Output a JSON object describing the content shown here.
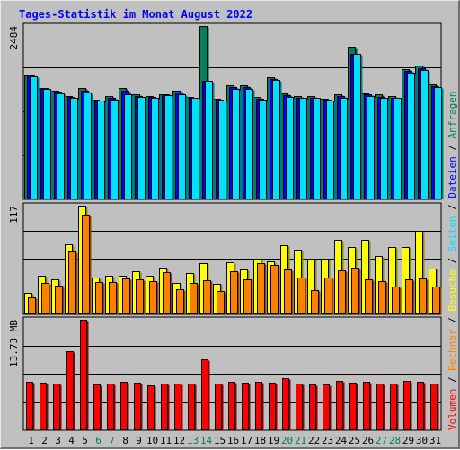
{
  "title": "Tages-Statistik im Monat August 2022",
  "colors": {
    "background": "#c0c0c0",
    "title": "#0000ff",
    "anfragen": "#00805c",
    "dateien": "#0000ff",
    "seiten": "#00e0ff",
    "besuche": "#ffff00",
    "rechner": "#ff8000",
    "volumen": "#ff0000",
    "weekend_label": "#00805c"
  },
  "right_labels": {
    "separator": " / ",
    "upper": [
      "Seiten",
      "Dateien",
      "Anfragen"
    ],
    "lower": [
      "Volumen",
      "Rechner",
      "Besuche"
    ]
  },
  "chart_data": [
    {
      "type": "bar",
      "panel": "hits",
      "y_label": "2484",
      "ylim": [
        0,
        2484
      ],
      "categories": [
        "1",
        "2",
        "3",
        "4",
        "5",
        "6",
        "7",
        "8",
        "9",
        "10",
        "11",
        "12",
        "13",
        "14",
        "15",
        "16",
        "17",
        "18",
        "19",
        "20",
        "21",
        "22",
        "23",
        "24",
        "25",
        "26",
        "27",
        "28",
        "29",
        "30",
        "31"
      ],
      "weekend_days": [
        "6",
        "7",
        "13",
        "14",
        "20",
        "21",
        "27",
        "28"
      ],
      "series": [
        {
          "name": "Anfragen",
          "values": [
            1770,
            1590,
            1560,
            1480,
            1590,
            1430,
            1480,
            1590,
            1500,
            1480,
            1510,
            1560,
            1470,
            2484,
            1440,
            1630,
            1630,
            1470,
            1750,
            1520,
            1480,
            1480,
            1440,
            1510,
            2190,
            1520,
            1500,
            1480,
            1860,
            1920,
            1650
          ]
        },
        {
          "name": "Dateien",
          "values": [
            1770,
            1590,
            1540,
            1470,
            1560,
            1420,
            1450,
            1560,
            1480,
            1470,
            1500,
            1530,
            1460,
            1700,
            1430,
            1610,
            1610,
            1440,
            1730,
            1490,
            1460,
            1460,
            1430,
            1480,
            2090,
            1500,
            1470,
            1460,
            1840,
            1880,
            1620
          ]
        },
        {
          "name": "Seiten",
          "values": [
            1760,
            1580,
            1520,
            1460,
            1530,
            1410,
            1430,
            1510,
            1470,
            1460,
            1490,
            1510,
            1450,
            1700,
            1420,
            1580,
            1580,
            1430,
            1710,
            1470,
            1450,
            1450,
            1420,
            1460,
            2090,
            1480,
            1460,
            1450,
            1820,
            1850,
            1610
          ]
        }
      ]
    },
    {
      "type": "bar",
      "panel": "visits",
      "y_label": "117",
      "ylim": [
        0,
        117
      ],
      "categories": [
        "1",
        "2",
        "3",
        "4",
        "5",
        "6",
        "7",
        "8",
        "9",
        "10",
        "11",
        "12",
        "13",
        "14",
        "15",
        "16",
        "17",
        "18",
        "19",
        "20",
        "21",
        "22",
        "23",
        "24",
        "25",
        "26",
        "27",
        "28",
        "29",
        "30",
        "31"
      ],
      "series": [
        {
          "name": "Besuche",
          "values": [
            23,
            42,
            38,
            75,
            117,
            40,
            42,
            42,
            46,
            42,
            50,
            34,
            44,
            55,
            33,
            56,
            48,
            60,
            57,
            74,
            70,
            60,
            60,
            80,
            73,
            80,
            63,
            73,
            73,
            90,
            49
          ]
        },
        {
          "name": "Rechner",
          "values": [
            18,
            34,
            31,
            68,
            107,
            35,
            35,
            39,
            38,
            36,
            45,
            27,
            34,
            37,
            25,
            46,
            38,
            55,
            53,
            48,
            40,
            26,
            40,
            47,
            50,
            38,
            36,
            30,
            38,
            39,
            30
          ]
        }
      ]
    },
    {
      "type": "bar",
      "panel": "volume",
      "y_label": "13.73 MB",
      "ylim": [
        0,
        13.73
      ],
      "categories": [
        "1",
        "2",
        "3",
        "4",
        "5",
        "6",
        "7",
        "8",
        "9",
        "10",
        "11",
        "12",
        "13",
        "14",
        "15",
        "16",
        "17",
        "18",
        "19",
        "20",
        "21",
        "22",
        "23",
        "24",
        "25",
        "26",
        "27",
        "28",
        "29",
        "30",
        "31"
      ],
      "series": [
        {
          "name": "Volumen",
          "values": [
            6.0,
            5.9,
            5.8,
            9.8,
            13.73,
            5.7,
            5.8,
            6.0,
            5.9,
            5.6,
            5.8,
            5.8,
            5.8,
            8.8,
            5.8,
            6.0,
            5.9,
            6.0,
            5.9,
            6.5,
            5.8,
            5.7,
            5.7,
            6.1,
            5.9,
            6.0,
            5.8,
            5.8,
            6.1,
            6.0,
            5.8
          ]
        }
      ]
    }
  ]
}
